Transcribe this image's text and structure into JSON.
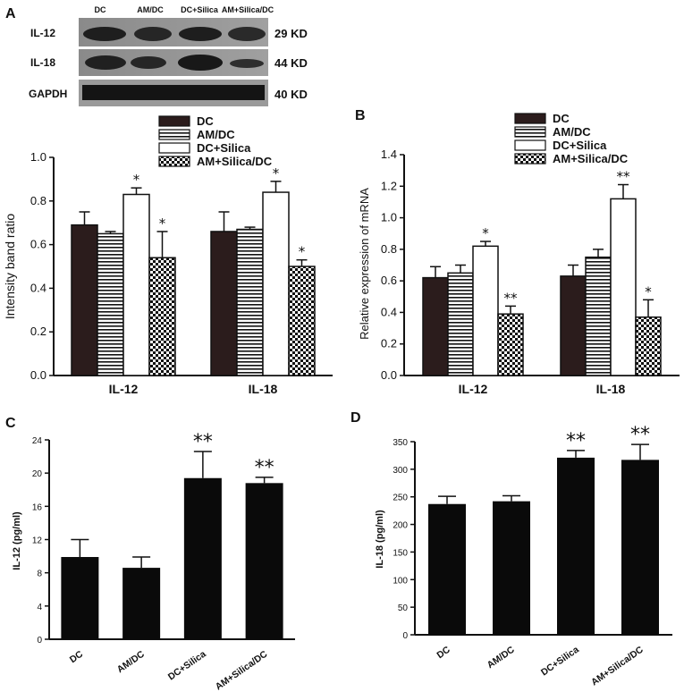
{
  "panels": {
    "a": "A",
    "b": "B",
    "c": "C",
    "d": "D"
  },
  "blot": {
    "lanes": [
      "DC",
      "AM/DC",
      "DC+Silica",
      "AM+Silica/DC"
    ],
    "rows": [
      {
        "protein": "IL-12",
        "kd": "29 KD"
      },
      {
        "protein": "IL-18",
        "kd": "44 KD"
      },
      {
        "protein": "GAPDH",
        "kd": "40 KD"
      }
    ]
  },
  "colors": {
    "dc": "#2b1c1c",
    "am_dc": "#ffffff",
    "dc_silica": "#ffffff",
    "am_silica_dc": "#ffffff",
    "bar_black": "#0a0a0a"
  },
  "chart_data": [
    {
      "id": "A",
      "type": "bar",
      "ylabel": "Intensity band ratio",
      "ylim": [
        0,
        1.0
      ],
      "yticks": [
        "0.0",
        "0.2",
        "0.4",
        "0.6",
        "0.8",
        "1.0"
      ],
      "categories": [
        "IL-12",
        "IL-18"
      ],
      "legend_placement": "top-center",
      "series": [
        {
          "name": "DC",
          "pattern": "solid-dark",
          "values": [
            0.69,
            0.66
          ],
          "errors": [
            0.06,
            0.09
          ],
          "sig": [
            "",
            ""
          ]
        },
        {
          "name": "AM/DC",
          "pattern": "horizontal-stripes",
          "values": [
            0.65,
            0.67
          ],
          "errors": [
            0.01,
            0.01
          ],
          "sig": [
            "",
            ""
          ]
        },
        {
          "name": "DC+Silica",
          "pattern": "white",
          "values": [
            0.83,
            0.84
          ],
          "errors": [
            0.03,
            0.05
          ],
          "sig": [
            "*",
            "*"
          ]
        },
        {
          "name": "AM+Silica/DC",
          "pattern": "checker",
          "values": [
            0.54,
            0.5
          ],
          "errors": [
            0.12,
            0.03
          ],
          "sig": [
            "*",
            "*"
          ]
        }
      ]
    },
    {
      "id": "B",
      "type": "bar",
      "ylabel": "Relative expression of mRNA",
      "ylim": [
        0,
        1.4
      ],
      "yticks": [
        "0.0",
        "0.2",
        "0.4",
        "0.6",
        "0.8",
        "1.0",
        "1.2",
        "1.4"
      ],
      "categories": [
        "IL-12",
        "IL-18"
      ],
      "legend_placement": "top-center",
      "series": [
        {
          "name": "DC",
          "pattern": "solid-dark",
          "values": [
            0.62,
            0.63
          ],
          "errors": [
            0.07,
            0.07
          ],
          "sig": [
            "",
            ""
          ]
        },
        {
          "name": "AM/DC",
          "pattern": "horizontal-stripes",
          "values": [
            0.65,
            0.75
          ],
          "errors": [
            0.05,
            0.05
          ],
          "sig": [
            "",
            ""
          ]
        },
        {
          "name": "DC+Silica",
          "pattern": "white",
          "values": [
            0.82,
            1.12
          ],
          "errors": [
            0.03,
            0.09
          ],
          "sig": [
            "*",
            "**"
          ]
        },
        {
          "name": "AM+Silica/DC",
          "pattern": "checker",
          "values": [
            0.39,
            0.37
          ],
          "errors": [
            0.05,
            0.11
          ],
          "sig": [
            "**",
            "*"
          ]
        }
      ]
    },
    {
      "id": "C",
      "type": "bar",
      "ylabel": "IL-12 (pg/ml)",
      "ylim": [
        0,
        24
      ],
      "yticks": [
        "0",
        "4",
        "8",
        "12",
        "16",
        "20",
        "24"
      ],
      "categories": [
        "DC",
        "AM/DC",
        "DC+Silica",
        "AM+Silica/DC"
      ],
      "values": [
        9.9,
        8.6,
        19.4,
        18.8
      ],
      "errors": [
        2.1,
        1.3,
        3.2,
        0.7
      ],
      "sig": [
        "",
        "",
        "**",
        "**"
      ]
    },
    {
      "id": "D",
      "type": "bar",
      "ylabel": "IL-18 (pg/ml)",
      "ylim": [
        0,
        350
      ],
      "yticks": [
        "0",
        "50",
        "100",
        "150",
        "200",
        "250",
        "300",
        "350"
      ],
      "categories": [
        "DC",
        "AM/DC",
        "DC+Silica",
        "AM+Silica/DC"
      ],
      "values": [
        237,
        242,
        321,
        317
      ],
      "errors": [
        14,
        10,
        13,
        28
      ],
      "sig": [
        "",
        "",
        "**",
        "**"
      ]
    }
  ]
}
